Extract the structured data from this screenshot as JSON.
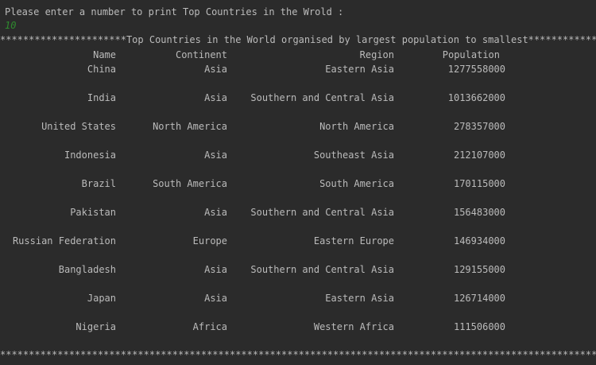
{
  "console": {
    "prompt": "Please enter a number to print Top Countries in the Wrold :",
    "user_input": "10",
    "banner": "**********************Top Countries in the World organised by largest population to smallest**************",
    "footer": "**************************************************************************************************************"
  },
  "table": {
    "headers": [
      "Name",
      "Continent",
      "Region",
      "Population"
    ],
    "rows": [
      [
        "China",
        "Asia",
        "Eastern Asia",
        "1277558000"
      ],
      [
        "India",
        "Asia",
        "Southern and Central Asia",
        "1013662000"
      ],
      [
        "United States",
        "North America",
        "North America",
        "278357000"
      ],
      [
        "Indonesia",
        "Asia",
        "Southeast Asia",
        "212107000"
      ],
      [
        "Brazil",
        "South America",
        "South America",
        "170115000"
      ],
      [
        "Pakistan",
        "Asia",
        "Southern and Central Asia",
        "156483000"
      ],
      [
        "Russian Federation",
        "Europe",
        "Eastern Europe",
        "146934000"
      ],
      [
        "Bangladesh",
        "Asia",
        "Southern and Central Asia",
        "129155000"
      ],
      [
        "Japan",
        "Asia",
        "Eastern Asia",
        "126714000"
      ],
      [
        "Nigeria",
        "Africa",
        "Western Africa",
        "111506000"
      ]
    ]
  }
}
